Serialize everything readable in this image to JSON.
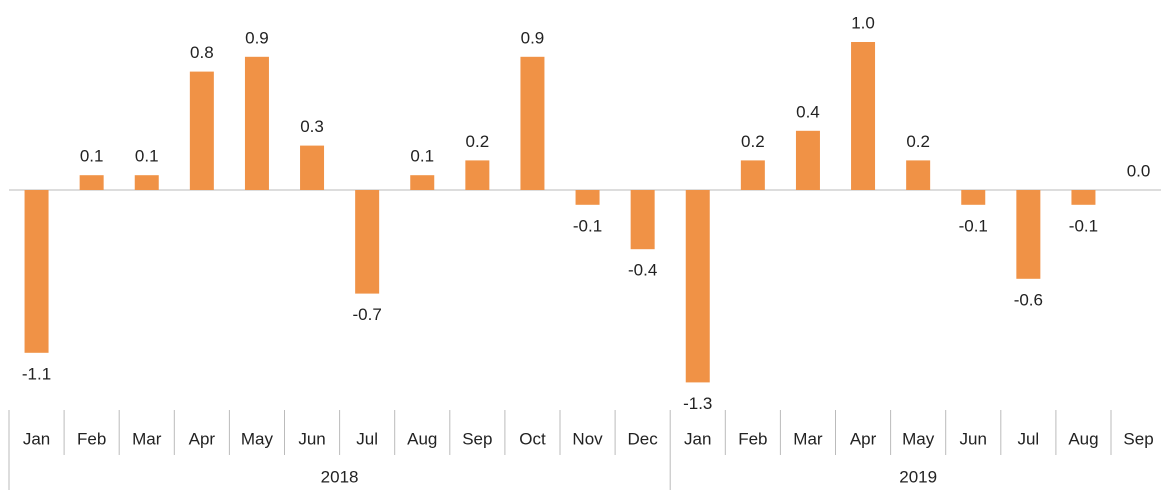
{
  "chart_data": {
    "type": "bar",
    "color": "#f09246",
    "groups": [
      {
        "name": "2018",
        "categories": [
          "Jan",
          "Feb",
          "Mar",
          "Apr",
          "May",
          "Jun",
          "Jul",
          "Aug",
          "Sep",
          "Oct",
          "Nov",
          "Dec"
        ]
      },
      {
        "name": "2019",
        "categories": [
          "Jan",
          "Feb",
          "Mar",
          "Apr",
          "May",
          "Jun",
          "Jul",
          "Aug",
          "Sep"
        ]
      }
    ],
    "values": [
      -1.1,
      0.1,
      0.1,
      0.8,
      0.9,
      0.3,
      -0.7,
      0.1,
      0.2,
      0.9,
      -0.1,
      -0.4,
      -1.3,
      0.2,
      0.4,
      1.0,
      0.2,
      -0.1,
      -0.6,
      -0.1,
      0.0
    ],
    "value_labels": [
      "-1.1",
      "0.1",
      "0.1",
      "0.8",
      "0.9",
      "0.3",
      "-0.7",
      "0.1",
      "0.2",
      "0.9",
      "-0.1",
      "-0.4",
      "-1.3",
      "0.2",
      "0.4",
      "1.0",
      "0.2",
      "-0.1",
      "-0.6",
      "-0.1",
      "0.0"
    ]
  }
}
